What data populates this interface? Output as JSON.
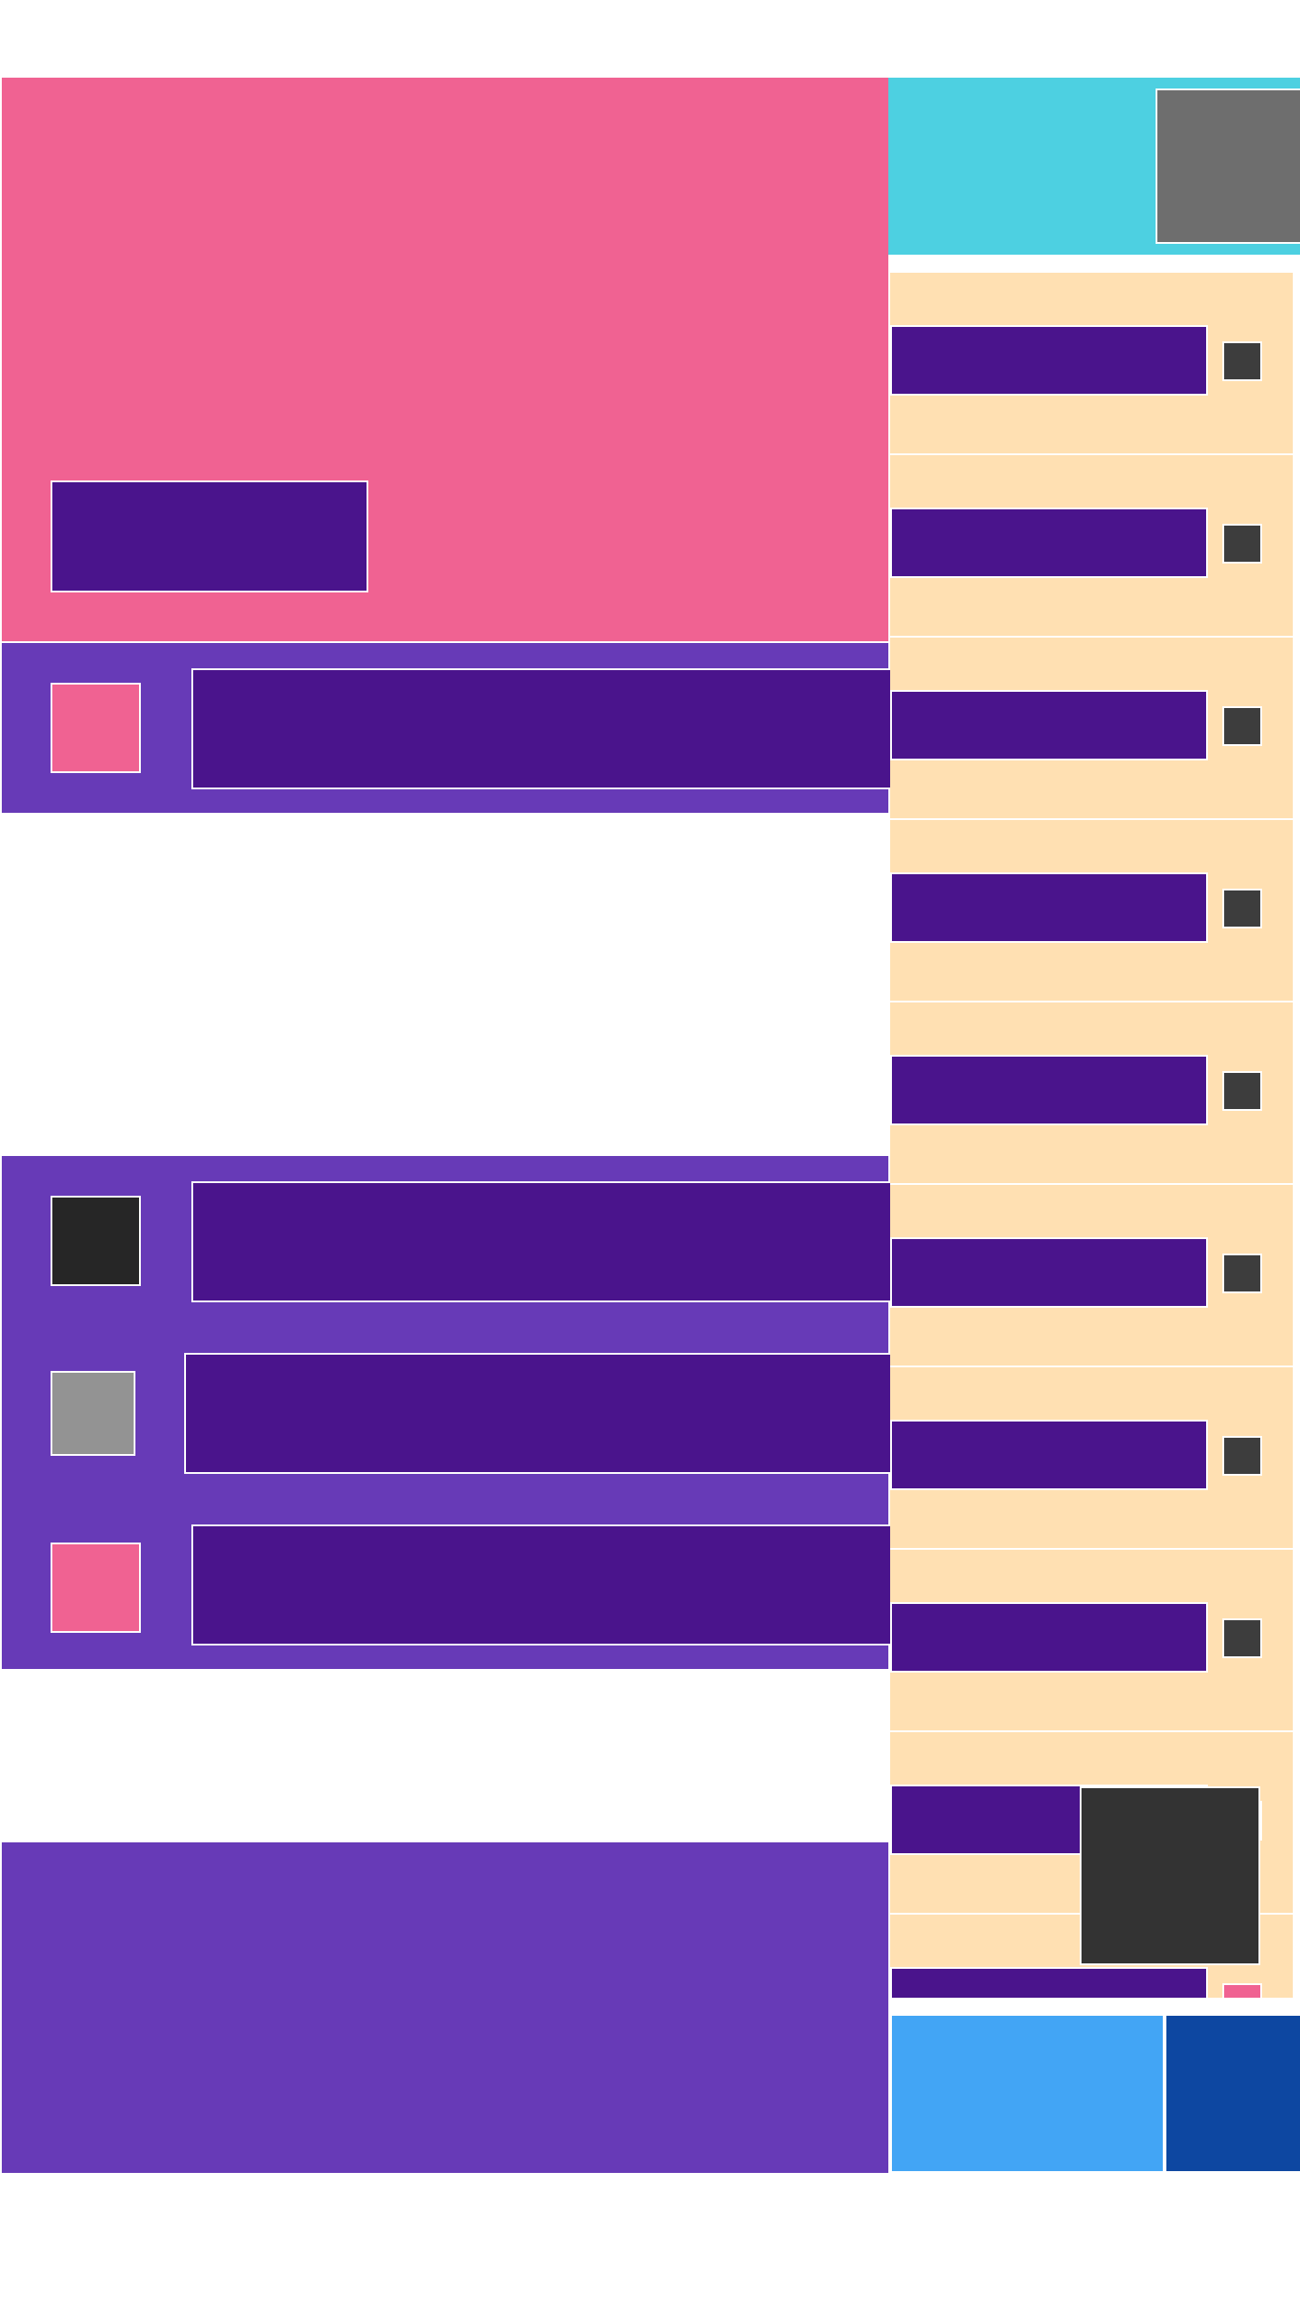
{
  "colors": {
    "hero": "#F06292",
    "accent_dark": "#4A148C",
    "panel": "#673AB7",
    "top_right": "#4DD0E1",
    "image_placeholder": "#6E6E6E",
    "list_item_bg": "#FFE0B2",
    "checkbox": "#3D3D3D",
    "overlay": "#333333",
    "button_light_blue": "#42A5F5",
    "button_dark_blue": "#0D47A1"
  },
  "list_a": {
    "rows": [
      {
        "thumb_color": "#F06292"
      }
    ]
  },
  "list_b": {
    "rows": [
      {
        "thumb_color": "#262626"
      },
      {
        "thumb_color": "#939393"
      },
      {
        "thumb_color": "#F06292"
      }
    ]
  },
  "right_list": {
    "item_count": 10,
    "last_item_check_color": "#F06292"
  }
}
